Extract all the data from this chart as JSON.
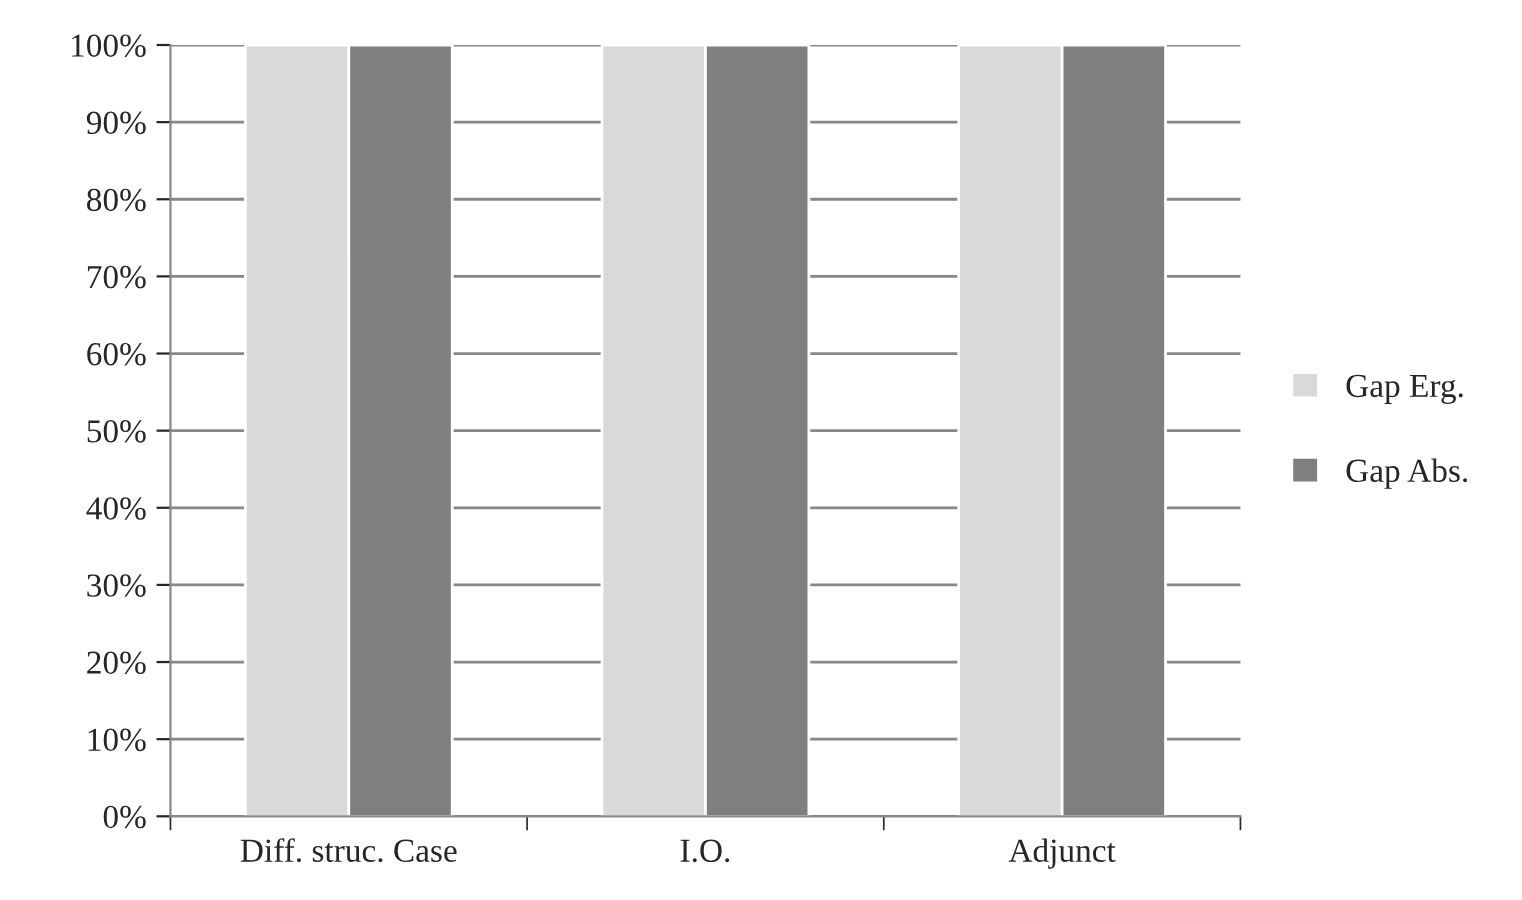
{
  "chart_data": {
    "type": "bar",
    "categories": [
      "Diff. struc. Case",
      "I.O.",
      "Adjunct"
    ],
    "series": [
      {
        "name": "Gap Erg.",
        "color": "#d9d9d9",
        "values": [
          100,
          100,
          100
        ]
      },
      {
        "name": "Gap Abs.",
        "color": "#7f7f7f",
        "values": [
          100,
          100,
          100
        ]
      }
    ],
    "ylim": [
      0,
      100
    ],
    "yticks": [
      {
        "value": 0,
        "label": "0%"
      },
      {
        "value": 10,
        "label": "10%"
      },
      {
        "value": 20,
        "label": "20%"
      },
      {
        "value": 30,
        "label": "30%"
      },
      {
        "value": 40,
        "label": "40%"
      },
      {
        "value": 50,
        "label": "50%"
      },
      {
        "value": 60,
        "label": "60%"
      },
      {
        "value": 70,
        "label": "70%"
      },
      {
        "value": 80,
        "label": "80%"
      },
      {
        "value": 90,
        "label": "90%"
      },
      {
        "value": 100,
        "label": "100%"
      }
    ],
    "grid": "y",
    "legend": "right"
  }
}
